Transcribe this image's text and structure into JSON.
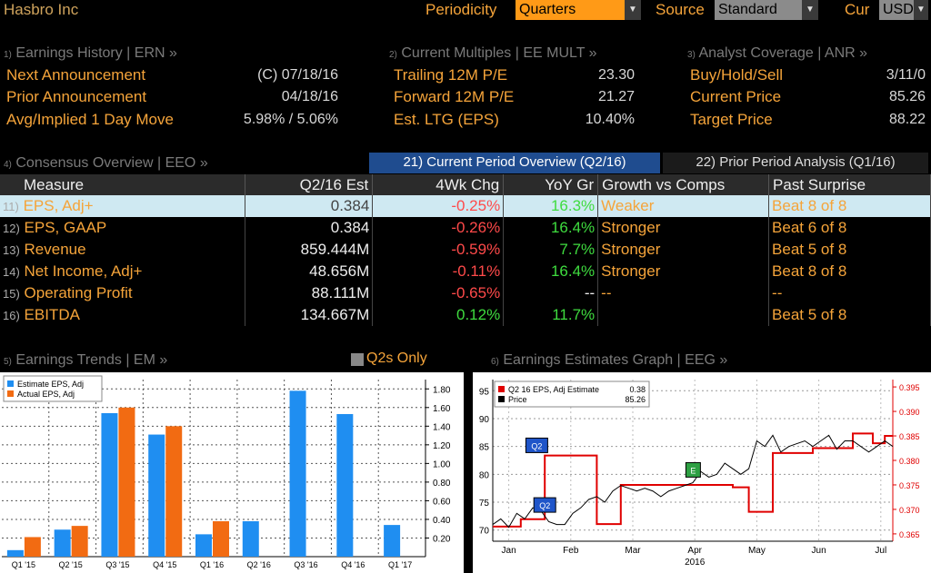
{
  "topbar": {
    "title": "Hasbro Inc",
    "periodicity_label": "Periodicity",
    "periodicity_value": "Quarters",
    "source_label": "Source",
    "source_value": "Standard",
    "cur_label": "Cur",
    "cur_value": "USD"
  },
  "earnings_history": {
    "num": "1)",
    "header": "Earnings History | ERN »",
    "rows": [
      {
        "label": "Next Announcement",
        "value": "(C)  07/18/16"
      },
      {
        "label": "Prior Announcement",
        "value": "04/18/16"
      },
      {
        "label": "Avg/Implied 1 Day Move",
        "value": "5.98% / 5.06%"
      }
    ]
  },
  "current_multiples": {
    "num": "2)",
    "header": "Current Multiples | EE MULT »",
    "rows": [
      {
        "label": "Trailing 12M P/E",
        "value": "23.30"
      },
      {
        "label": "Forward 12M P/E",
        "value": "21.27"
      },
      {
        "label": "Est. LTG (EPS)",
        "value": "10.40%"
      }
    ]
  },
  "analyst_coverage": {
    "num": "3)",
    "header": "Analyst Coverage | ANR »",
    "rows": [
      {
        "label": "Buy/Hold/Sell",
        "value": "3/11/0"
      },
      {
        "label": "Current Price",
        "value": "85.26"
      },
      {
        "label": "Target Price",
        "value": "88.22"
      }
    ]
  },
  "consensus": {
    "num": "4)",
    "header": "Consensus Overview | EEO »",
    "tabs": [
      "21) Current Period Overview (Q2/16)",
      "22) Prior Period Analysis (Q1/16)"
    ],
    "columns": [
      "Measure",
      "Q2/16 Est",
      "4Wk Chg",
      "YoY Gr",
      "Growth vs Comps",
      "Past Surprise"
    ],
    "rows": [
      {
        "n": "11)",
        "measure": "EPS, Adj+",
        "est": "0.384",
        "chg": "-0.25%",
        "yoy": "16.3%",
        "comp": "Weaker",
        "surprise": "Beat 8 of 8"
      },
      {
        "n": "12)",
        "measure": "EPS, GAAP",
        "est": "0.384",
        "chg": "-0.26%",
        "yoy": "16.4%",
        "comp": "Stronger",
        "surprise": "Beat 6 of 8"
      },
      {
        "n": "13)",
        "measure": "Revenue",
        "est": "859.444M",
        "chg": "-0.59%",
        "yoy": "7.7%",
        "comp": "Stronger",
        "surprise": "Beat 5 of 8"
      },
      {
        "n": "14)",
        "measure": "Net Income, Adj+",
        "est": "48.656M",
        "chg": "-0.11%",
        "yoy": "16.4%",
        "comp": "Stronger",
        "surprise": "Beat 8 of 8"
      },
      {
        "n": "15)",
        "measure": "Operating Profit",
        "est": "88.111M",
        "chg": "-0.65%",
        "yoy": "--",
        "comp": "--",
        "surprise": "--"
      },
      {
        "n": "16)",
        "measure": "EBITDA",
        "est": "134.667M",
        "chg": "0.12%",
        "yoy": "11.7%",
        "comp": "",
        "surprise": "Beat 5 of 8"
      }
    ]
  },
  "earnings_trends": {
    "num": "5)",
    "header": "Earnings Trends | EM »",
    "toggle": "Q2s Only"
  },
  "estimates_graph": {
    "num": "6)",
    "header": "Earnings Estimates Graph | EEG »"
  },
  "colors": {
    "accent": "#f5a43a",
    "blue": "#1f8ef1",
    "orange": "#f26b12",
    "red": "#e00000",
    "green": "#3fdc3f"
  },
  "chart_data": [
    {
      "type": "bar",
      "categories": [
        "Q1 '15",
        "Q2 '15",
        "Q3 '15",
        "Q4 '15",
        "Q1 '16",
        "Q2 '16",
        "Q3 '16",
        "Q4 '16",
        "Q1 '17"
      ],
      "series": [
        {
          "name": "Estimate EPS, Adj",
          "values": [
            0.07,
            0.29,
            1.54,
            1.31,
            0.24,
            0.38,
            1.78,
            1.53,
            0.34
          ]
        },
        {
          "name": "Actual EPS, Adj",
          "values": [
            0.21,
            0.33,
            1.6,
            1.4,
            0.38,
            null,
            null,
            null,
            null
          ]
        }
      ],
      "yticks": [
        "0.20",
        "0.40",
        "0.60",
        "0.80",
        "1.00",
        "1.20",
        "1.40",
        "1.60",
        "1.80"
      ],
      "ylim": [
        0,
        1.9
      ]
    },
    {
      "type": "line",
      "x_ticks": [
        "Jan",
        "Feb",
        "Mar",
        "Apr",
        "May",
        "Jun",
        "Jul"
      ],
      "x_year": "2016",
      "left_ticks": [
        "70",
        "75",
        "80",
        "85",
        "90",
        "95"
      ],
      "right_ticks": [
        "0.365",
        "0.370",
        "0.375",
        "0.380",
        "0.385",
        "0.390",
        "0.395"
      ],
      "left_ylim": [
        68,
        97
      ],
      "right_ylim": [
        0.3635,
        0.3965
      ],
      "legend": [
        {
          "name": "Q2 16 EPS, Adj Estimate",
          "value": "0.38"
        },
        {
          "name": "Price",
          "value": "85.26"
        }
      ],
      "series": [
        {
          "name": "Q2 16 EPS, Adj Estimate",
          "axis": "right",
          "x": [
            0,
            0.05,
            0.07,
            0.08,
            0.12,
            0.13,
            0.14,
            0.15,
            0.21,
            0.26,
            0.27,
            0.3,
            0.32,
            0.36,
            0.45,
            0.5,
            0.51,
            0.56,
            0.6,
            0.61,
            0.64,
            0.65,
            0.7,
            0.75,
            0.8,
            0.85,
            0.9,
            0.92,
            0.95,
            0.98,
            1.0
          ],
          "y": [
            0.3665,
            0.3665,
            0.368,
            0.368,
            0.368,
            0.381,
            0.381,
            0.381,
            0.381,
            0.367,
            0.367,
            0.367,
            0.375,
            0.375,
            0.375,
            0.375,
            0.375,
            0.375,
            0.3745,
            0.3745,
            0.3695,
            0.3695,
            0.3815,
            0.3815,
            0.3825,
            0.3825,
            0.3855,
            0.3855,
            0.3835,
            0.385,
            0.385
          ]
        },
        {
          "name": "Price",
          "axis": "left",
          "x": [
            0,
            0.02,
            0.04,
            0.06,
            0.08,
            0.1,
            0.12,
            0.14,
            0.16,
            0.18,
            0.2,
            0.22,
            0.24,
            0.26,
            0.28,
            0.3,
            0.32,
            0.34,
            0.36,
            0.38,
            0.4,
            0.42,
            0.44,
            0.46,
            0.48,
            0.5,
            0.52,
            0.54,
            0.56,
            0.58,
            0.6,
            0.62,
            0.64,
            0.66,
            0.68,
            0.7,
            0.72,
            0.74,
            0.76,
            0.78,
            0.8,
            0.82,
            0.84,
            0.86,
            0.88,
            0.9,
            0.92,
            0.94,
            0.96,
            0.98,
            1.0
          ],
          "y": [
            71,
            72,
            70.5,
            73,
            72,
            74,
            73.5,
            71.5,
            71,
            71,
            73,
            74,
            75.5,
            76,
            75,
            77,
            78,
            77.5,
            77,
            77.5,
            77,
            76,
            77,
            77.5,
            78,
            78.5,
            80.5,
            79.5,
            80,
            82,
            81,
            80,
            81,
            86,
            85,
            87,
            84,
            85,
            85.5,
            86,
            85,
            86,
            87,
            84.5,
            86,
            86,
            85,
            84,
            85,
            86,
            85
          ]
        }
      ],
      "markers": [
        {
          "label": "Q2",
          "x": 0.11,
          "y": 85.2,
          "color": "blue"
        },
        {
          "label": "Q2",
          "x": 0.13,
          "y": 74.5,
          "color": "blue"
        },
        {
          "label": "E",
          "x": 0.51,
          "y": 80.8,
          "color": "green"
        }
      ]
    }
  ]
}
